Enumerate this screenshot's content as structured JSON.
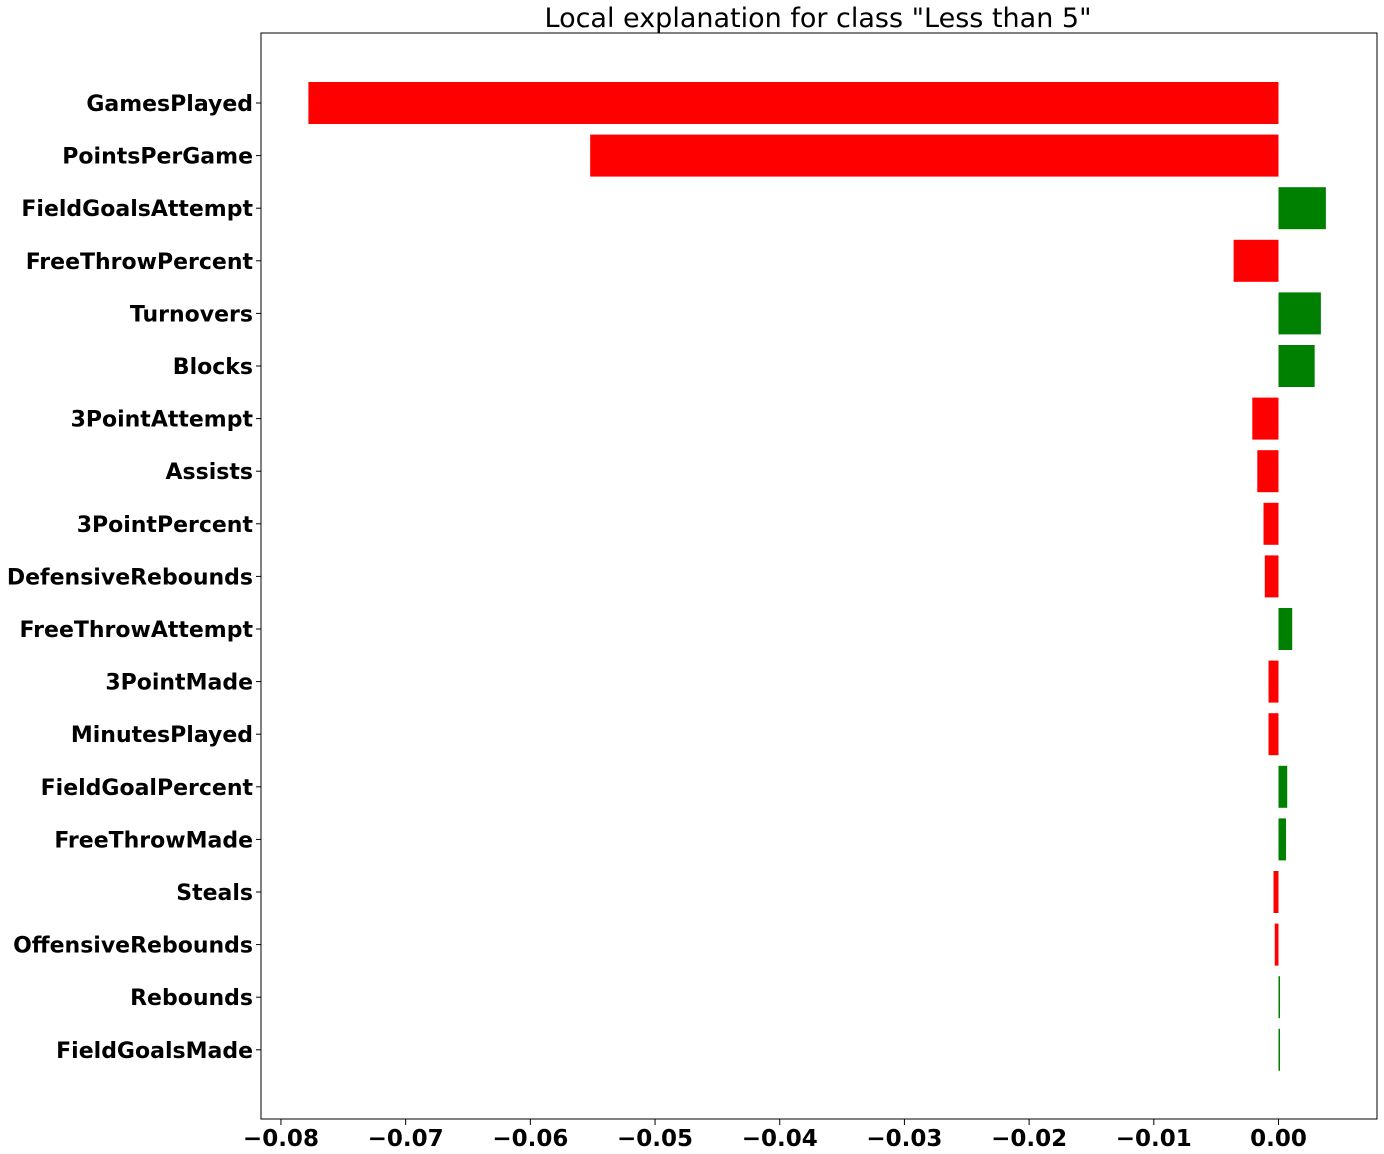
{
  "chart_data": {
    "type": "bar",
    "orientation": "horizontal",
    "title": "Local explanation for class \"Less than 5\"",
    "xlabel": "",
    "ylabel": "",
    "xlim": [
      -0.0816,
      0.0079
    ],
    "xticks": [
      -0.08,
      -0.07,
      -0.06,
      -0.05,
      -0.04,
      -0.03,
      -0.02,
      -0.01,
      0.0
    ],
    "xtick_labels": [
      "−0.08",
      "−0.07",
      "−0.06",
      "−0.05",
      "−0.04",
      "−0.03",
      "−0.02",
      "−0.01",
      "0.00"
    ],
    "grid": false,
    "colors": {
      "positive": "#008000",
      "negative": "#ff0000"
    },
    "categories": [
      "GamesPlayed",
      "PointsPerGame",
      "FieldGoalsAttempt",
      "FreeThrowPercent",
      "Turnovers",
      "Blocks",
      "3PointAttempt",
      "Assists",
      "3PointPercent",
      "DefensiveRebounds",
      "FreeThrowAttempt",
      "3PointMade",
      "MinutesPlayed",
      "FieldGoalPercent",
      "FreeThrowMade",
      "Steals",
      "OffensiveRebounds",
      "Rebounds",
      "FieldGoalsMade"
    ],
    "values": [
      -0.0778,
      -0.0552,
      0.0038,
      -0.0036,
      0.0034,
      0.0029,
      -0.0021,
      -0.0017,
      -0.0012,
      -0.0011,
      0.0011,
      -0.0008,
      -0.0008,
      0.0007,
      0.0006,
      -0.0004,
      -0.0003,
      0.0001,
      0.0001
    ]
  }
}
